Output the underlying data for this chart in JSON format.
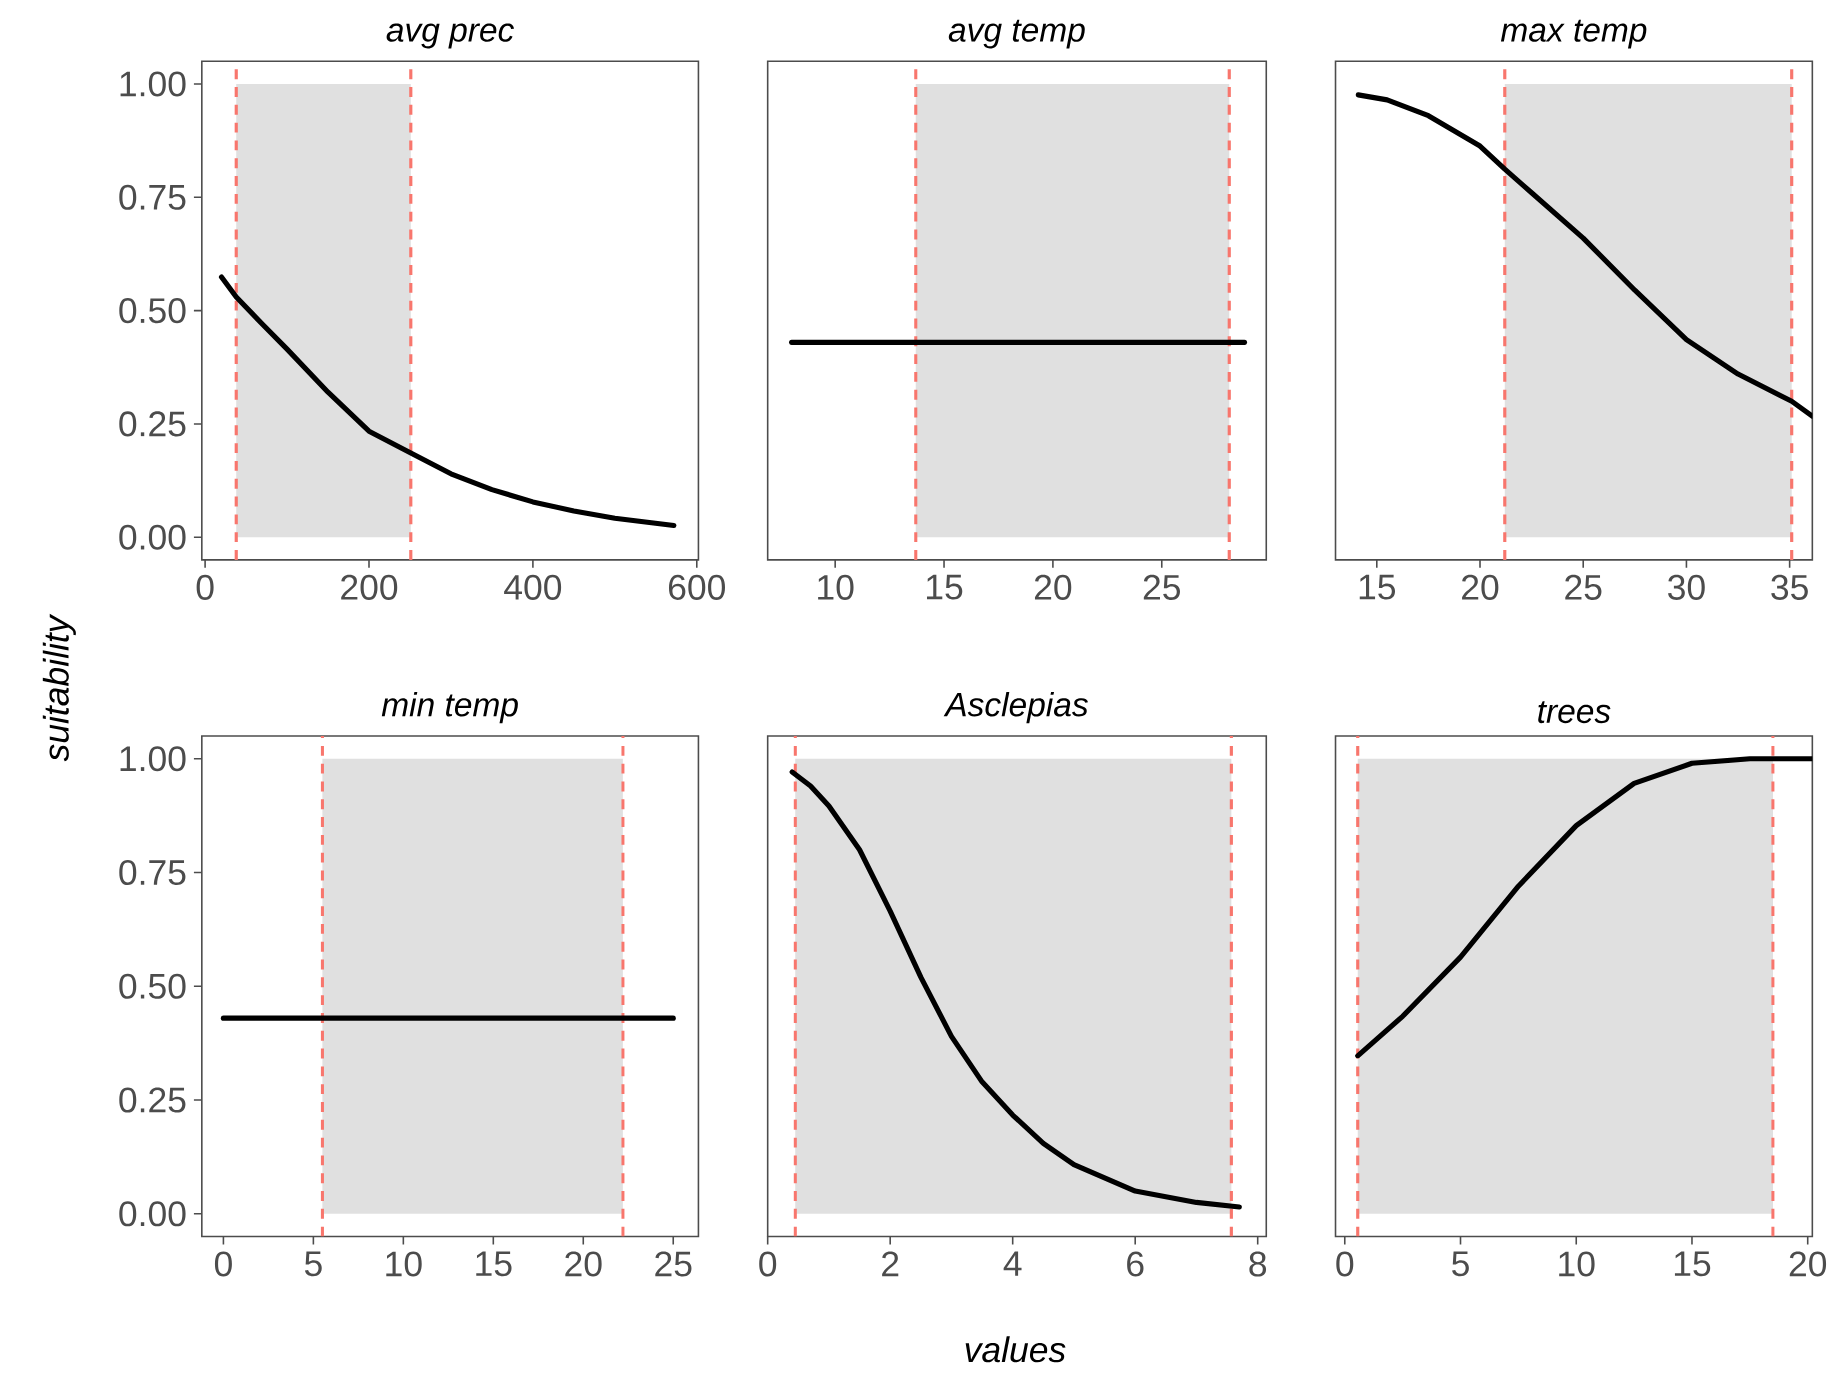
{
  "chart_data": [
    {
      "type": "line",
      "title": "avg prec",
      "ylabel": "suitability",
      "xlim": [
        -4,
        602
      ],
      "ylim": [
        -0.05,
        1.05
      ],
      "xticks": [
        0,
        200,
        400,
        600
      ],
      "yticks": [
        {
          "value": 0,
          "label": "0.00"
        },
        {
          "value": 0.25,
          "label": "0.25"
        },
        {
          "value": 0.5,
          "label": "0.50"
        },
        {
          "value": 0.75,
          "label": "0.75"
        },
        {
          "value": 1,
          "label": "1.00"
        }
      ],
      "bands": [
        {
          "axis": "x",
          "from": 38,
          "to": 251,
          "color": "#e0e0e0"
        }
      ],
      "ref_lines": [
        {
          "axis": "x",
          "value": 38,
          "color": "#f8766d",
          "line_style": "dashed"
        },
        {
          "axis": "x",
          "value": 251,
          "color": "#f8766d",
          "line_style": "dashed"
        }
      ],
      "series": [
        {
          "color": "#000000",
          "x": [
            20,
            38,
            70,
            100,
            150,
            200,
            251,
            300,
            350,
            400,
            450,
            500,
            572
          ],
          "values": [
            0.574,
            0.53,
            0.47,
            0.415,
            0.32,
            0.234,
            0.186,
            0.14,
            0.105,
            0.078,
            0.058,
            0.042,
            0.026
          ]
        }
      ]
    },
    {
      "type": "line",
      "title": "avg temp",
      "xlim": [
        6.9,
        29.8
      ],
      "ylim": [
        -0.05,
        1.05
      ],
      "xticks": [
        10,
        15,
        20,
        25
      ],
      "tick_labels": "x",
      "bands": [
        {
          "axis": "x",
          "from": 13.7,
          "to": 28.1,
          "color": "#e0e0e0"
        }
      ],
      "ref_lines": [
        {
          "axis": "x",
          "value": 13.7,
          "color": "#f8766d",
          "line_style": "dashed"
        },
        {
          "axis": "x",
          "value": 28.1,
          "color": "#f8766d",
          "line_style": "dashed"
        }
      ],
      "series": [
        {
          "color": "#000000",
          "x": [
            8,
            28.8
          ],
          "values": [
            0.43,
            0.43
          ]
        }
      ]
    },
    {
      "type": "line",
      "title": "max temp",
      "xlim": [
        13,
        36.1
      ],
      "ylim": [
        -0.05,
        1.05
      ],
      "xticks": [
        15,
        20,
        25,
        30,
        35
      ],
      "tick_labels": "x",
      "bands": [
        {
          "axis": "x",
          "from": 21.2,
          "to": 35.1,
          "color": "#e0e0e0"
        }
      ],
      "ref_lines": [
        {
          "axis": "x",
          "value": 21.2,
          "color": "#f8766d",
          "line_style": "dashed"
        },
        {
          "axis": "x",
          "value": 35.1,
          "color": "#f8766d",
          "line_style": "dashed"
        }
      ],
      "series": [
        {
          "color": "#000000",
          "x": [
            14.1,
            15.5,
            17.5,
            20,
            21.2,
            22.5,
            25,
            27.5,
            30,
            32.5,
            35.1,
            36.1
          ],
          "values": [
            0.976,
            0.965,
            0.93,
            0.863,
            0.812,
            0.76,
            0.66,
            0.545,
            0.436,
            0.36,
            0.3,
            0.267
          ]
        }
      ]
    },
    {
      "type": "line",
      "title": "min temp",
      "xlim": [
        -1.2,
        26.4
      ],
      "ylim": [
        -0.05,
        1.05
      ],
      "xticks": [
        0,
        5,
        10,
        15,
        20,
        25
      ],
      "yticks": [
        {
          "value": 0,
          "label": "0.00"
        },
        {
          "value": 0.25,
          "label": "0.25"
        },
        {
          "value": 0.5,
          "label": "0.50"
        },
        {
          "value": 0.75,
          "label": "0.75"
        },
        {
          "value": 1,
          "label": "1.00"
        }
      ],
      "bands": [
        {
          "axis": "x",
          "from": 5.5,
          "to": 22.2,
          "color": "#e0e0e0"
        }
      ],
      "ref_lines": [
        {
          "axis": "x",
          "value": 5.5,
          "color": "#f8766d",
          "line_style": "dashed"
        },
        {
          "axis": "x",
          "value": 22.2,
          "color": "#f8766d",
          "line_style": "dashed"
        }
      ],
      "series": [
        {
          "color": "#000000",
          "x": [
            0,
            25
          ],
          "values": [
            0.43,
            0.43
          ]
        }
      ]
    },
    {
      "type": "line",
      "title": "Asclepias",
      "xlabel": "values",
      "xlim": [
        0,
        8.14
      ],
      "ylim": [
        -0.05,
        1.05
      ],
      "xticks": [
        0,
        2,
        4,
        6,
        8
      ],
      "tick_labels": "x",
      "bands": [
        {
          "axis": "x",
          "from": 0.45,
          "to": 7.57,
          "color": "#e0e0e0"
        }
      ],
      "ref_lines": [
        {
          "axis": "x",
          "value": 0.45,
          "color": "#f8766d",
          "line_style": "dashed"
        },
        {
          "axis": "x",
          "value": 7.57,
          "color": "#f8766d",
          "line_style": "dashed"
        }
      ],
      "series": [
        {
          "color": "#000000",
          "x": [
            0.4,
            0.7,
            1,
            1.5,
            2,
            2.5,
            3,
            3.5,
            4,
            4.5,
            5,
            6,
            7,
            7.7
          ],
          "values": [
            0.971,
            0.94,
            0.896,
            0.8,
            0.665,
            0.52,
            0.39,
            0.29,
            0.217,
            0.155,
            0.108,
            0.05,
            0.025,
            0.015
          ]
        }
      ]
    },
    {
      "type": "line",
      "title": "trees",
      "xlim": [
        -0.4,
        20.2
      ],
      "ylim": [
        -0.05,
        1.05
      ],
      "xticks": [
        0,
        5,
        10,
        15,
        20
      ],
      "tick_labels": "x",
      "bands": [
        {
          "axis": "x",
          "from": 0.56,
          "to": 18.5,
          "color": "#e0e0e0"
        }
      ],
      "ref_lines": [
        {
          "axis": "x",
          "value": 0.56,
          "color": "#f8766d",
          "line_style": "dashed"
        },
        {
          "axis": "x",
          "value": 18.5,
          "color": "#f8766d",
          "line_style": "dashed"
        }
      ],
      "series": [
        {
          "color": "#000000",
          "x": [
            0.56,
            2.5,
            5,
            7.5,
            10,
            12.5,
            15,
            17.5,
            20.2
          ],
          "values": [
            0.347,
            0.434,
            0.564,
            0.72,
            0.853,
            0.946,
            0.99,
            1.0,
            1.0
          ]
        }
      ]
    }
  ]
}
